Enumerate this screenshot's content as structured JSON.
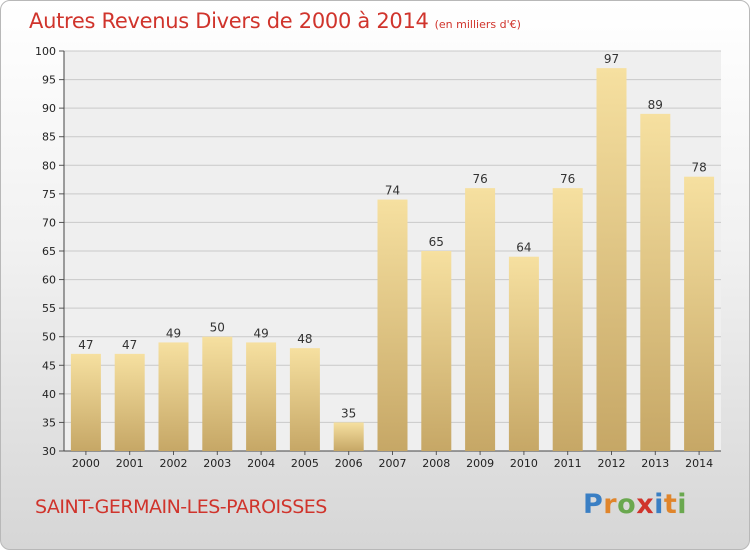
{
  "header": {
    "title": "Autres Revenus Divers de 2000 à 2014",
    "subtitle": "(en milliers d'€)"
  },
  "footer": {
    "commune": "SAINT-GERMAIN-LES-PAROISSES",
    "logo": [
      {
        "ch": "P",
        "color": "#3a7fc4"
      },
      {
        "ch": "r",
        "color": "#e0852b"
      },
      {
        "ch": "o",
        "color": "#6aa84f"
      },
      {
        "ch": "x",
        "color": "#d0342c"
      },
      {
        "ch": "i",
        "color": "#3a7fc4"
      },
      {
        "ch": "t",
        "color": "#e0852b"
      },
      {
        "ch": "i",
        "color": "#6aa84f"
      }
    ]
  },
  "colors": {
    "title": "#d0342c",
    "bar_light": "#f6e0a0",
    "bar_dark": "#c6a766"
  },
  "chart_data": {
    "type": "bar",
    "categories": [
      "2000",
      "2001",
      "2002",
      "2003",
      "2004",
      "2005",
      "2006",
      "2007",
      "2008",
      "2009",
      "2010",
      "2011",
      "2012",
      "2013",
      "2014"
    ],
    "values": [
      47,
      47,
      49,
      50,
      49,
      48,
      35,
      74,
      65,
      76,
      64,
      76,
      97,
      89,
      78
    ],
    "ylim": [
      30,
      100
    ],
    "yticks": [
      30,
      35,
      40,
      45,
      50,
      55,
      60,
      65,
      70,
      75,
      80,
      85,
      90,
      95,
      100
    ],
    "grid": true
  }
}
